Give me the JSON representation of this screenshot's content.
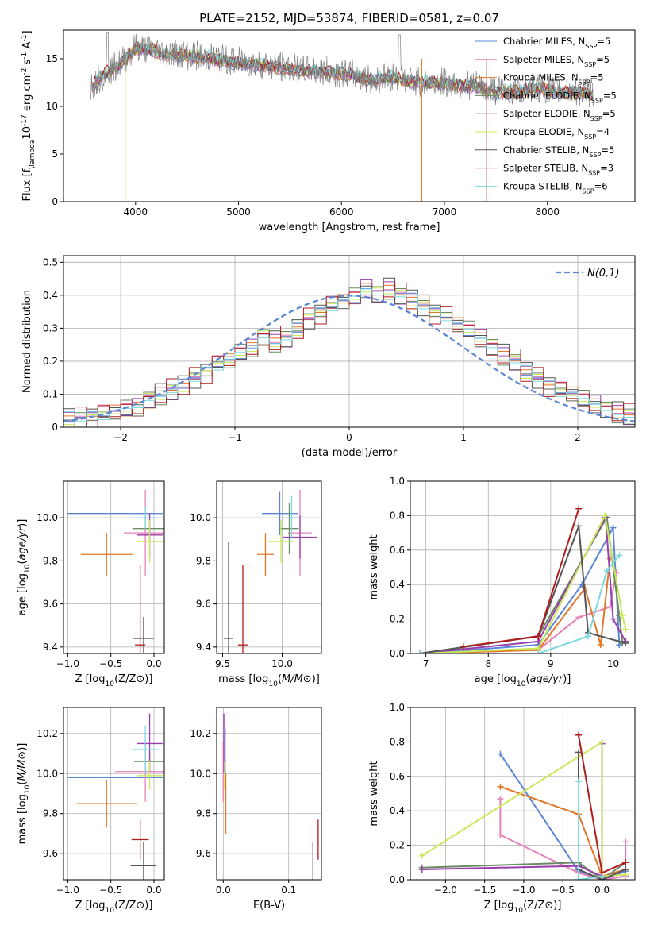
{
  "figure": {
    "title": "PLATE=2152, MJD=53874, FIBERID=0581, z=0.07"
  },
  "chart_data": [
    {
      "id": "spectrum",
      "type": "line",
      "xlabel": "wavelength [Angstrom, rest frame]",
      "ylabel": "Flux [f$_{\\lambda}$10$^{-17}$ erg cm$^{-2}$ s$^{-1}$ A$^{-1}$]",
      "xlim": [
        3300,
        8850
      ],
      "ylim": [
        0,
        18
      ],
      "xticks": [
        4000,
        5000,
        6000,
        7000,
        8000
      ],
      "yticks": [
        0,
        5,
        10,
        15
      ],
      "legend_position": "top-right",
      "data_color": "#808080",
      "observed_flux": {
        "x": [
          3550,
          3700,
          3850,
          4000,
          4150,
          4300,
          4500,
          4700,
          4900,
          5100,
          5300,
          5500,
          5700,
          5900,
          6100,
          6300,
          6500,
          6700,
          6900,
          7100,
          7300,
          7500,
          7700,
          7900,
          8100,
          8300,
          8450
        ],
        "y": [
          12,
          13.5,
          14.5,
          16.2,
          16.0,
          15.6,
          15.4,
          15.2,
          14.8,
          14.6,
          14.3,
          14.0,
          13.8,
          13.6,
          13.4,
          12.8,
          13.2,
          12.6,
          12.6,
          12.4,
          12.2,
          11.6,
          11.6,
          12.0,
          11.6,
          11.5,
          11.4
        ]
      },
      "series": [
        {
          "name": "Chabrier MILES, N$_{SSP}$=5",
          "color": "#5b86d6"
        },
        {
          "name": "Salpeter MILES, N$_{SSP}$=5",
          "color": "#e680b8"
        },
        {
          "name": "Kroupa MILES, N$_{SSP}$=5",
          "color": "#e0782a"
        },
        {
          "name": "Chabrier ELODIE, N$_{SSP}$=5",
          "color": "#6a8a64"
        },
        {
          "name": "Salpeter ELODIE, N$_{SSP}$=5",
          "color": "#9a3dad"
        },
        {
          "name": "Kroupa ELODIE, N$_{SSP}$=4",
          "color": "#c9e85a"
        },
        {
          "name": "Chabrier STELIB, N$_{SSP}$=5",
          "color": "#555555"
        },
        {
          "name": "Salpeter STELIB, N$_{SSP}$=3",
          "color": "#b01c1c"
        },
        {
          "name": "Kroupa STELIB, N$_{SSP}$=6",
          "color": "#7dd8e0"
        }
      ]
    },
    {
      "id": "residuals",
      "type": "bar",
      "xlabel": "(data-model)/error",
      "ylabel": "Normed distribution",
      "xlim": [
        -2.5,
        2.5
      ],
      "ylim": [
        0,
        0.52
      ],
      "xticks": [
        -2,
        -1,
        0,
        1,
        2
      ],
      "yticks": [
        0.0,
        0.1,
        0.2,
        0.3,
        0.4,
        0.5
      ],
      "grid": true,
      "legend_position": "top-right",
      "gaussian": {
        "label": "$\\mathcal{N}(0,1)$",
        "mean": 0,
        "sigma": 1,
        "color": "#5b86d6"
      },
      "hist_bin_width": 0.1,
      "hist_x_start": -2.5,
      "hist_values": [
        0.03,
        0.03,
        0.035,
        0.04,
        0.045,
        0.05,
        0.06,
        0.08,
        0.1,
        0.11,
        0.13,
        0.15,
        0.17,
        0.19,
        0.2,
        0.22,
        0.24,
        0.27,
        0.26,
        0.27,
        0.3,
        0.33,
        0.35,
        0.37,
        0.38,
        0.39,
        0.42,
        0.4,
        0.42,
        0.4,
        0.39,
        0.37,
        0.35,
        0.34,
        0.31,
        0.29,
        0.27,
        0.24,
        0.22,
        0.2,
        0.17,
        0.15,
        0.13,
        0.11,
        0.1,
        0.08,
        0.07,
        0.05,
        0.045,
        0.035
      ],
      "hist_offsets": [
        0,
        0.015,
        -0.01,
        0.02,
        -0.015,
        0.01,
        -0.02,
        0.025,
        -0.005
      ]
    },
    {
      "id": "age-vs-Z",
      "type": "scatter",
      "xlabel": "Z [log$_{10}$(Z/Z$_\\odot$)]",
      "ylabel": "age  [log$_{10}$($age/yr$)]",
      "xlim": [
        -1.05,
        0.12
      ],
      "ylim": [
        9.37,
        10.17
      ],
      "xticks": [
        -1.0,
        -0.5,
        0.0
      ],
      "xticklabels": [
        "−1.0",
        "−0.5",
        "0.0"
      ],
      "yticks": [
        9.4,
        9.6,
        9.8,
        10.0
      ],
      "yticklabels": [
        "9.4",
        "9.6",
        "9.8",
        "10.0"
      ],
      "grid": true,
      "points": [
        {
          "x": -0.45,
          "y": 10.02,
          "xerr": 0.55,
          "yerr": 0.0,
          "color": "#5b86d6"
        },
        {
          "x": -0.1,
          "y": 9.93,
          "xerr": 0.25,
          "yerr": 0.2,
          "color": "#e680b8"
        },
        {
          "x": -0.55,
          "y": 9.83,
          "xerr": 0.3,
          "yerr": 0.1,
          "color": "#e0782a"
        },
        {
          "x": -0.05,
          "y": 9.95,
          "xerr": 0.2,
          "yerr": 0.06,
          "color": "#6a8a64"
        },
        {
          "x": -0.05,
          "y": 9.92,
          "xerr": 0.15,
          "yerr": 0.1,
          "color": "#9a3dad"
        },
        {
          "x": -0.05,
          "y": 9.89,
          "xerr": 0.15,
          "yerr": 0.1,
          "color": "#c9e85a"
        },
        {
          "x": -0.12,
          "y": 9.44,
          "xerr": 0.12,
          "yerr": 0.1,
          "color": "#555555"
        },
        {
          "x": -0.16,
          "y": 9.41,
          "xerr": 0.06,
          "yerr": 0.37,
          "color": "#b01c1c"
        },
        {
          "x": -0.1,
          "y": 10.0,
          "xerr": 0.15,
          "yerr": 0.05,
          "color": "#7dd8e0"
        }
      ]
    },
    {
      "id": "age-vs-mass",
      "type": "scatter",
      "xlabel": "mass [log$_{10}$($M/M_\\odot$)]",
      "ylabel": "",
      "xlim": [
        9.45,
        10.33
      ],
      "ylim": [
        9.37,
        10.17
      ],
      "xticks": [
        9.5,
        10.0
      ],
      "xticklabels": [
        "9.5",
        "10.0"
      ],
      "yticks": [
        9.4,
        9.6,
        9.8,
        10.0
      ],
      "yticklabels": [
        "9.4",
        "9.6",
        "9.8",
        "10.0"
      ],
      "grid": true,
      "points": [
        {
          "x": 9.98,
          "y": 10.02,
          "xerr": 0.15,
          "yerr": 0.1,
          "color": "#5b86d6"
        },
        {
          "x": 10.15,
          "y": 9.93,
          "xerr": 0.1,
          "yerr": 0.2,
          "color": "#e680b8"
        },
        {
          "x": 9.86,
          "y": 9.83,
          "xerr": 0.07,
          "yerr": 0.1,
          "color": "#e0782a"
        },
        {
          "x": 10.06,
          "y": 9.95,
          "xerr": 0.08,
          "yerr": 0.12,
          "color": "#6a8a64"
        },
        {
          "x": 10.15,
          "y": 9.91,
          "xerr": 0.14,
          "yerr": 0.1,
          "color": "#9a3dad"
        },
        {
          "x": 9.99,
          "y": 9.89,
          "xerr": 0.1,
          "yerr": 0.1,
          "color": "#c9e85a"
        },
        {
          "x": 9.55,
          "y": 9.44,
          "xerr": 0.04,
          "yerr": 0.45,
          "color": "#555555"
        },
        {
          "x": 9.67,
          "y": 9.41,
          "xerr": 0.04,
          "yerr": 0.37,
          "color": "#b01c1c"
        },
        {
          "x": 10.08,
          "y": 10.0,
          "xerr": 0.05,
          "yerr": 0.1,
          "color": "#7dd8e0"
        }
      ]
    },
    {
      "id": "weight-vs-age",
      "type": "line",
      "xlabel": "age  [log$_{10}$($age/yr$)]",
      "ylabel": "mass weight",
      "xlim": [
        6.75,
        10.35
      ],
      "ylim": [
        0,
        1.0
      ],
      "xticks": [
        7,
        8,
        9,
        10
      ],
      "xticklabels": [
        "7",
        "8",
        "9",
        "10"
      ],
      "yticks": [
        0.0,
        0.2,
        0.4,
        0.6,
        0.8,
        1.0
      ],
      "yticklabels": [
        "0.0",
        "0.2",
        "0.4",
        "0.6",
        "0.8",
        "1.0"
      ],
      "grid": true,
      "series": [
        {
          "color": "#5b86d6",
          "x": [
            6.9,
            8.8,
            9.5,
            10.0,
            10.1
          ],
          "y": [
            0.0,
            0.05,
            0.4,
            0.73,
            0.05
          ]
        },
        {
          "color": "#e680b8",
          "x": [
            6.9,
            8.8,
            9.45,
            9.95,
            10.05
          ],
          "y": [
            0.0,
            0.02,
            0.21,
            0.27,
            0.47
          ]
        },
        {
          "color": "#e0782a",
          "x": [
            6.9,
            8.8,
            9.55,
            9.8,
            9.95
          ],
          "y": [
            0.0,
            0.02,
            0.38,
            0.05,
            0.55
          ]
        },
        {
          "color": "#6a8a64",
          "x": [
            6.9,
            8.8,
            9.9,
            10.1,
            10.15
          ],
          "y": [
            0.0,
            0.1,
            0.79,
            0.22,
            0.06
          ]
        },
        {
          "color": "#9a3dad",
          "x": [
            6.9,
            8.8,
            9.88,
            10.0,
            10.2
          ],
          "y": [
            0.0,
            0.07,
            0.79,
            0.2,
            0.07
          ]
        },
        {
          "color": "#c9e85a",
          "x": [
            6.9,
            8.8,
            9.87,
            10.15,
            10.2
          ],
          "y": [
            0.0,
            0.03,
            0.8,
            0.22,
            0.14
          ]
        },
        {
          "color": "#555555",
          "x": [
            6.9,
            8.8,
            9.45,
            9.6,
            10.2
          ],
          "y": [
            0.0,
            0.1,
            0.74,
            0.12,
            0.06
          ]
        },
        {
          "color": "#b01c1c",
          "x": [
            7.6,
            8.8,
            9.45
          ],
          "y": [
            0.04,
            0.1,
            0.84
          ]
        },
        {
          "color": "#7dd8e0",
          "x": [
            6.9,
            8.8,
            9.6,
            9.9,
            10.1
          ],
          "y": [
            0.0,
            0.0,
            0.1,
            0.48,
            0.57
          ]
        }
      ]
    },
    {
      "id": "mass-vs-Z",
      "type": "scatter",
      "xlabel": "Z [log$_{10}$(Z/Z$_\\odot$)]",
      "ylabel": "mass [log$_{10}$($M/M_\\odot$)]",
      "xlim": [
        -1.05,
        0.12
      ],
      "ylim": [
        9.47,
        10.33
      ],
      "xticks": [
        -1.0,
        -0.5,
        0.0
      ],
      "xticklabels": [
        "−1.0",
        "−0.5",
        "0.0"
      ],
      "yticks": [
        9.6,
        9.8,
        10.0,
        10.2
      ],
      "yticklabels": [
        "9.6",
        "9.8",
        "10.0",
        "10.2"
      ],
      "grid": true,
      "points": [
        {
          "x": -0.45,
          "y": 9.98,
          "xerr": 0.55,
          "yerr": 0.0,
          "color": "#5b86d6"
        },
        {
          "x": -0.1,
          "y": 10.01,
          "xerr": 0.35,
          "yerr": 0.15,
          "color": "#e680b8"
        },
        {
          "x": -0.55,
          "y": 9.85,
          "xerr": 0.35,
          "yerr": 0.12,
          "color": "#e0782a"
        },
        {
          "x": -0.05,
          "y": 10.06,
          "xerr": 0.18,
          "yerr": 0.05,
          "color": "#6a8a64"
        },
        {
          "x": -0.05,
          "y": 10.15,
          "xerr": 0.15,
          "yerr": 0.15,
          "color": "#9a3dad"
        },
        {
          "x": -0.05,
          "y": 9.99,
          "xerr": 0.15,
          "yerr": 0.07,
          "color": "#c9e85a"
        },
        {
          "x": -0.12,
          "y": 9.54,
          "xerr": 0.15,
          "yerr": 0.12,
          "color": "#555555"
        },
        {
          "x": -0.16,
          "y": 9.67,
          "xerr": 0.1,
          "yerr": 0.1,
          "color": "#b01c1c"
        },
        {
          "x": -0.1,
          "y": 10.12,
          "xerr": 0.15,
          "yerr": 0.12,
          "color": "#7dd8e0"
        }
      ]
    },
    {
      "id": "mass-vs-EBV",
      "type": "scatter",
      "xlabel": "E(B-V)",
      "ylabel": "",
      "xlim": [
        -0.01,
        0.15
      ],
      "ylim": [
        9.47,
        10.33
      ],
      "xticks": [
        0.0,
        0.1
      ],
      "xticklabels": [
        "0.0",
        "0.1"
      ],
      "yticks": [
        9.6,
        9.8,
        10.0,
        10.2
      ],
      "yticklabels": [
        "9.6",
        "9.8",
        "10.0",
        "10.2"
      ],
      "grid": true,
      "points": [
        {
          "x": 0.003,
          "y": 9.98,
          "xerr": 0.0,
          "yerr": 0.25,
          "color": "#5b86d6"
        },
        {
          "x": 0.0,
          "y": 10.01,
          "xerr": 0.0,
          "yerr": 0.15,
          "color": "#e680b8"
        },
        {
          "x": 0.004,
          "y": 9.85,
          "xerr": 0.0,
          "yerr": 0.15,
          "color": "#e0782a"
        },
        {
          "x": 0.001,
          "y": 10.15,
          "xerr": 0.0,
          "yerr": 0.15,
          "color": "#9a3dad"
        },
        {
          "x": 0.002,
          "y": 9.99,
          "xerr": 0.0,
          "yerr": 0.07,
          "color": "#c9e85a"
        },
        {
          "x": 0.137,
          "y": 9.54,
          "xerr": 0.0,
          "yerr": 0.12,
          "color": "#555555"
        },
        {
          "x": 0.145,
          "y": 9.67,
          "xerr": 0.0,
          "yerr": 0.1,
          "color": "#b01c1c"
        }
      ]
    },
    {
      "id": "weight-vs-Z",
      "type": "line",
      "xlabel": "Z [log$_{10}$(Z/Z$_\\odot$)]",
      "ylabel": "mass weight",
      "xlim": [
        -2.45,
        0.42
      ],
      "ylim": [
        0,
        1.0
      ],
      "xticks": [
        -2.0,
        -1.5,
        -1.0,
        -0.5,
        0.0
      ],
      "xticklabels": [
        "−2.0",
        "−1.5",
        "−1.0",
        "−0.5",
        "0.0"
      ],
      "yticks": [
        0.0,
        0.2,
        0.4,
        0.6,
        0.8,
        1.0
      ],
      "yticklabels": [
        "0.0",
        "0.2",
        "0.4",
        "0.6",
        "0.8",
        "1.0"
      ],
      "grid": true,
      "series": [
        {
          "color": "#5b86d6",
          "x": [
            -1.3,
            -0.3,
            0.0,
            0.3
          ],
          "y": [
            0.73,
            0.05,
            0.0,
            0.05
          ]
        },
        {
          "color": "#e680b8",
          "x": [
            -1.3,
            -1.3,
            -0.3,
            0.0,
            0.3,
            0.3
          ],
          "y": [
            0.47,
            0.26,
            0.04,
            0.0,
            0.02,
            0.22
          ]
        },
        {
          "color": "#e0782a",
          "x": [
            -1.3,
            -0.3,
            0.0,
            0.3
          ],
          "y": [
            0.54,
            0.38,
            0.02,
            0.06
          ]
        },
        {
          "color": "#6a8a64",
          "x": [
            -2.3,
            -0.3,
            0.0,
            0.3
          ],
          "y": [
            0.07,
            0.1,
            0.0,
            0.1
          ]
        },
        {
          "color": "#9a3dad",
          "x": [
            -2.3,
            -0.3,
            0.0,
            0.0
          ],
          "y": [
            0.06,
            0.08,
            0.02,
            0.79
          ]
        },
        {
          "color": "#c9e85a",
          "x": [
            -2.3,
            0.0,
            0.0,
            0.3
          ],
          "y": [
            0.14,
            0.8,
            0.02,
            0.03
          ]
        },
        {
          "color": "#555555",
          "x": [
            -0.3,
            -0.3,
            0.0,
            0.3
          ],
          "y": [
            0.74,
            0.06,
            0.0,
            0.06
          ]
        },
        {
          "color": "#b01c1c",
          "x": [
            -0.3,
            0.0,
            0.3
          ],
          "y": [
            0.84,
            0.04,
            0.1
          ]
        },
        {
          "color": "#7dd8e0",
          "x": [
            -0.3,
            -0.3,
            0.0
          ],
          "y": [
            0.57,
            0.0,
            0.02
          ]
        }
      ]
    }
  ]
}
